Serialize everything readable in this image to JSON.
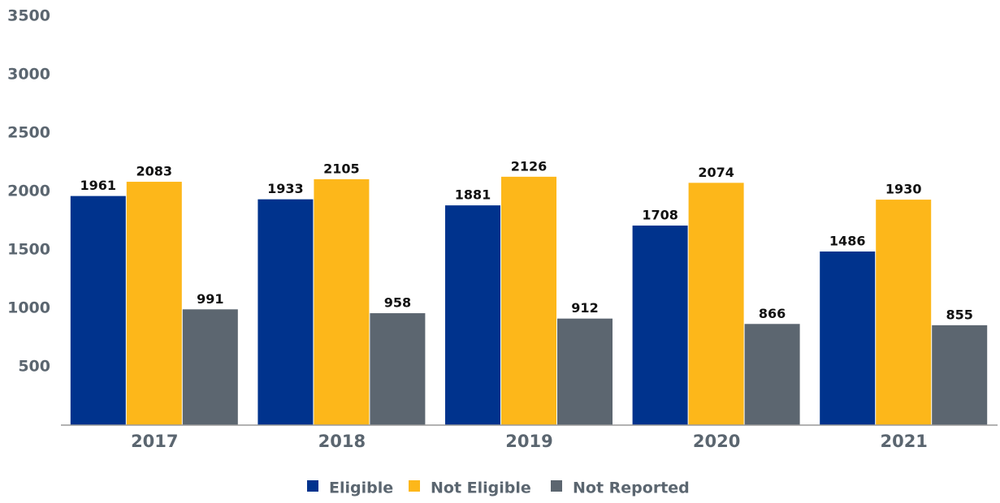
{
  "chart_data": {
    "type": "bar",
    "categories": [
      "2017",
      "2018",
      "2019",
      "2020",
      "2021"
    ],
    "series": [
      {
        "name": "Eligible",
        "color": "#00338d",
        "values": [
          1961,
          1933,
          1881,
          1708,
          1486
        ]
      },
      {
        "name": "Not Eligible",
        "color": "#fdb71a",
        "values": [
          2083,
          2105,
          2126,
          2074,
          1930
        ]
      },
      {
        "name": "Not Reported",
        "color": "#5c6670",
        "values": [
          991,
          958,
          912,
          866,
          855
        ]
      }
    ],
    "ylim": [
      0,
      3500
    ],
    "yticks": [
      500,
      1000,
      1500,
      2000,
      2500,
      3000,
      3500
    ],
    "grid": false
  }
}
